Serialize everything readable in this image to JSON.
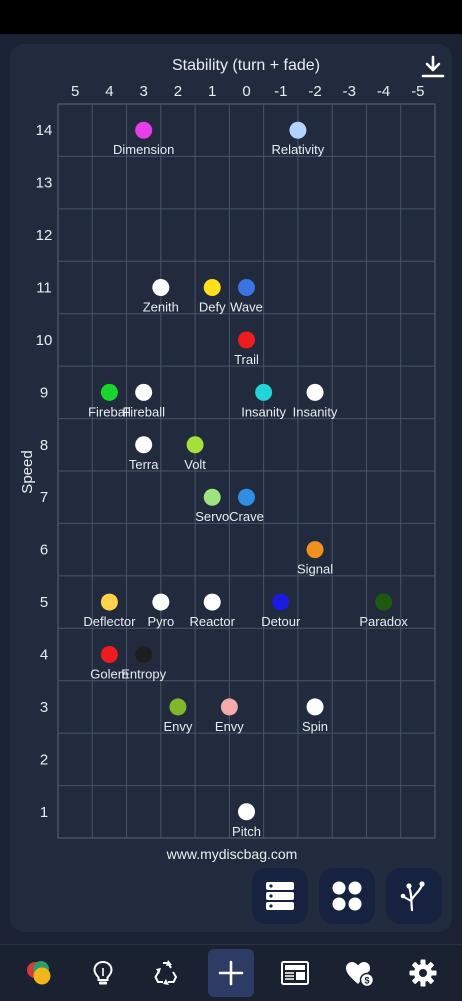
{
  "chart_data": {
    "type": "scatter",
    "xlabel": "Stability (turn + fade)",
    "ylabel": "Speed",
    "x_ticks": [
      5,
      4,
      3,
      2,
      1,
      0,
      -1,
      -2,
      -3,
      -4,
      -5
    ],
    "y_ticks": [
      1,
      2,
      3,
      4,
      5,
      6,
      7,
      8,
      9,
      10,
      11,
      12,
      13,
      14
    ],
    "xlim": [
      5.5,
      -5.5
    ],
    "ylim": [
      0.5,
      14.5
    ],
    "x_reversed": true,
    "grid": true,
    "points": [
      {
        "label": "Dimension",
        "x": 3,
        "y": 14,
        "color": "#e63ee8"
      },
      {
        "label": "Relativity",
        "x": -1.5,
        "y": 14,
        "color": "#b3d4ff"
      },
      {
        "label": "Zenith",
        "x": 2.5,
        "y": 11,
        "color": "#ffffff"
      },
      {
        "label": "Defy",
        "x": 1,
        "y": 11,
        "color": "#ffe01a"
      },
      {
        "label": "Wave",
        "x": 0,
        "y": 11,
        "color": "#3b74e0"
      },
      {
        "label": "Trail",
        "x": 0,
        "y": 10,
        "color": "#ee1c1c"
      },
      {
        "label": "Fireball",
        "x": 4,
        "y": 9,
        "color": "#18d62e"
      },
      {
        "label": "Fireball",
        "x": 3,
        "y": 9,
        "color": "#ffffff"
      },
      {
        "label": "Insanity",
        "x": -0.5,
        "y": 9,
        "color": "#22d3d8"
      },
      {
        "label": "Insanity",
        "x": -2,
        "y": 9,
        "color": "#ffffff"
      },
      {
        "label": "Terra",
        "x": 3,
        "y": 8,
        "color": "#ffffff"
      },
      {
        "label": "Volt",
        "x": 1.5,
        "y": 8,
        "color": "#a4e03a"
      },
      {
        "label": "Servo",
        "x": 1,
        "y": 7,
        "color": "#9fe381"
      },
      {
        "label": "Crave",
        "x": 0,
        "y": 7,
        "color": "#2f8fe6"
      },
      {
        "label": "Signal",
        "x": -2,
        "y": 6,
        "color": "#f0901e"
      },
      {
        "label": "Deflector",
        "x": 4,
        "y": 5,
        "color": "#ffd24a"
      },
      {
        "label": "Pyro",
        "x": 2.5,
        "y": 5,
        "color": "#ffffff"
      },
      {
        "label": "Reactor",
        "x": 1,
        "y": 5,
        "color": "#ffffff"
      },
      {
        "label": "Detour",
        "x": -1,
        "y": 5,
        "color": "#1a1ae0"
      },
      {
        "label": "Paradox",
        "x": -4,
        "y": 5,
        "color": "#1d5a10"
      },
      {
        "label": "Golem",
        "x": 4,
        "y": 4,
        "color": "#ee1c1c"
      },
      {
        "label": "Entropy",
        "x": 3,
        "y": 4,
        "color": "#1e1e1e"
      },
      {
        "label": "Envy",
        "x": 2,
        "y": 3,
        "color": "#7fb82a"
      },
      {
        "label": "Envy",
        "x": 0.5,
        "y": 3,
        "color": "#f2aaaa"
      },
      {
        "label": "Spin",
        "x": -2,
        "y": 3,
        "color": "#ffffff"
      },
      {
        "label": "Pitch",
        "x": 0,
        "y": 1,
        "color": "#ffffff"
      }
    ],
    "footer": "www.mydiscbag.com"
  },
  "icons": {
    "download": "download-icon",
    "fabs": [
      "list-view-icon",
      "grid-view-icon",
      "flight-chart-icon"
    ],
    "nav": [
      "discs-icon",
      "lightbulb-icon",
      "recycle-icon",
      "add-icon",
      "news-icon",
      "wishlist-icon",
      "settings-icon"
    ]
  },
  "colors": {
    "background": "#1b2233",
    "card": "#222b3d",
    "fab": "#16223f",
    "nav_active": "#2c3c64"
  }
}
